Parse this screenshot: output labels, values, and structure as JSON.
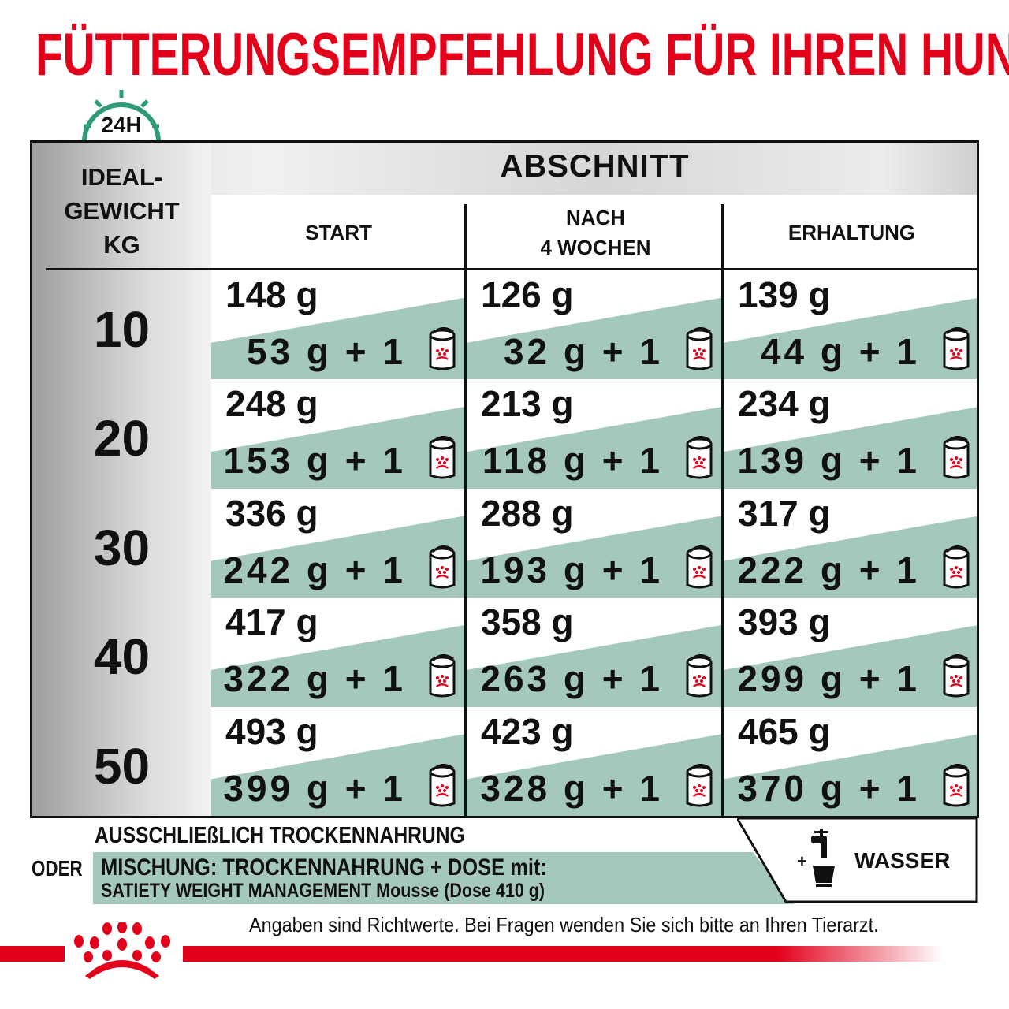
{
  "title": "FÜTTERUNGSEMPFEHLUNG FÜR IHREN HUND",
  "clock": {
    "label": "24H",
    "icon": "clock-24h-icon",
    "color": "#2e9a78"
  },
  "table": {
    "weight_header": [
      "IDEAL-",
      "GEWICHT",
      "KG"
    ],
    "section_header": "ABSCHNITT",
    "columns": [
      "START",
      "NACH\n4 WOCHEN",
      "ERHALTUNG"
    ],
    "rows": [
      {
        "kg": "10",
        "cells": [
          {
            "dry": "148 g",
            "mix": "53 g + 1"
          },
          {
            "dry": "126 g",
            "mix": "32 g + 1"
          },
          {
            "dry": "139 g",
            "mix": "44 g + 1"
          }
        ]
      },
      {
        "kg": "20",
        "cells": [
          {
            "dry": "248 g",
            "mix": "153 g + 1"
          },
          {
            "dry": "213 g",
            "mix": "118 g + 1"
          },
          {
            "dry": "234 g",
            "mix": "139 g + 1"
          }
        ]
      },
      {
        "kg": "30",
        "cells": [
          {
            "dry": "336 g",
            "mix": "242 g + 1"
          },
          {
            "dry": "288 g",
            "mix": "193 g + 1"
          },
          {
            "dry": "317 g",
            "mix": "222 g + 1"
          }
        ]
      },
      {
        "kg": "40",
        "cells": [
          {
            "dry": "417 g",
            "mix": "322 g + 1"
          },
          {
            "dry": "358 g",
            "mix": "263 g + 1"
          },
          {
            "dry": "393 g",
            "mix": "299 g + 1"
          }
        ]
      },
      {
        "kg": "50",
        "cells": [
          {
            "dry": "493 g",
            "mix": "399 g + 1"
          },
          {
            "dry": "423 g",
            "mix": "328 g + 1"
          },
          {
            "dry": "465 g",
            "mix": "370 g + 1"
          }
        ]
      }
    ],
    "can_icon": "royal-canin-can-icon"
  },
  "legend": {
    "dry_only": "AUSSCHLIEßLICH TROCKENNAHRUNG",
    "or": "ODER",
    "mix_line1": "MISCHUNG: TROCKENNAHRUNG + DOSE mit:",
    "mix_line2": "SATIETY WEIGHT MANAGEMENT Mousse (Dose 410 g)",
    "water_plus": "+",
    "water": "WASSER",
    "water_icon": "water-tap-bowl-icon"
  },
  "note": "Angaben sind Richtwerte. Bei Fragen wenden Sie sich bitte an Ihren Tierarzt.",
  "colors": {
    "brand_red": "#e2001a",
    "teal": "#a4c9bc"
  },
  "logo": "royal-canin-crown-logo"
}
